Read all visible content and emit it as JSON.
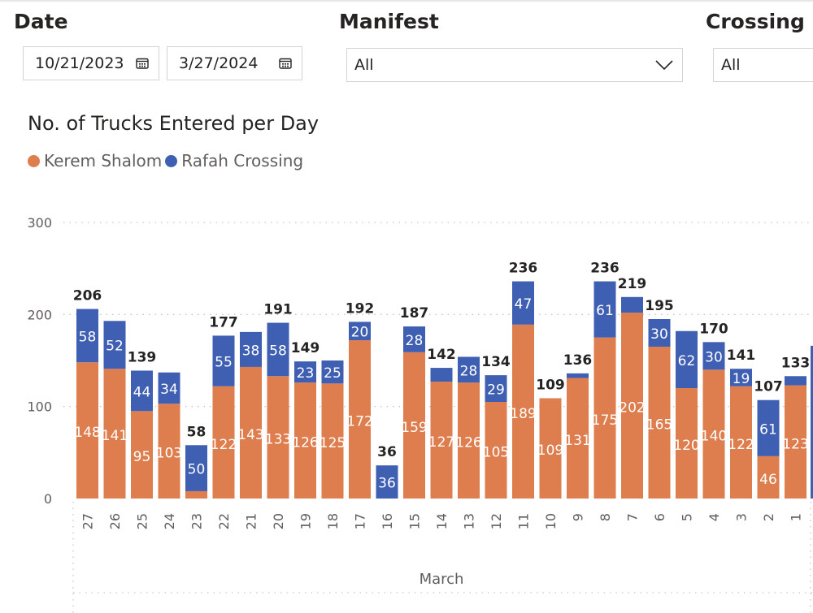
{
  "filters": {
    "date": {
      "label": "Date",
      "start": "10/21/2023",
      "end": "3/27/2024"
    },
    "manifest": {
      "label": "Manifest",
      "value": "All"
    },
    "crossing_point": {
      "label": "Crossing P",
      "value": "All"
    }
  },
  "colors": {
    "kerem_shalom": "#de7e4f",
    "rafah_crossing": "#3f5fb2"
  },
  "icons": {
    "date_picker": "calendar-icon",
    "dropdown": "chevron-down-icon"
  },
  "chart_data": {
    "type": "bar",
    "stacked": true,
    "title": "No. of Trucks Entered per Day",
    "legend": [
      "Kerem Shalom",
      "Rafah Crossing"
    ],
    "legend_position": "top-left",
    "categories": [
      "27",
      "26",
      "25",
      "24",
      "23",
      "22",
      "21",
      "20",
      "19",
      "18",
      "17",
      "16",
      "15",
      "14",
      "13",
      "12",
      "11",
      "10",
      "9",
      "8",
      "7",
      "6",
      "5",
      "4",
      "3",
      "2",
      "1"
    ],
    "x_group_label": "March",
    "ylim": [
      0,
      300
    ],
    "yticks": [
      0,
      100,
      200,
      300
    ],
    "grid": true,
    "series": [
      {
        "name": "Kerem Shalom",
        "color": "#de7e4f",
        "values": [
          148,
          141,
          95,
          103,
          8,
          122,
          143,
          133,
          126,
          125,
          172,
          0,
          159,
          127,
          126,
          105,
          189,
          109,
          131,
          175,
          202,
          165,
          120,
          140,
          122,
          46,
          123
        ]
      },
      {
        "name": "Rafah Crossing",
        "color": "#3f5fb2",
        "values": [
          58,
          52,
          44,
          34,
          50,
          55,
          38,
          58,
          23,
          25,
          20,
          36,
          28,
          15,
          28,
          29,
          47,
          0,
          5,
          61,
          17,
          30,
          62,
          30,
          19,
          61,
          10
        ]
      }
    ],
    "totals": [
      206,
      null,
      139,
      null,
      58,
      177,
      null,
      191,
      149,
      null,
      192,
      36,
      187,
      142,
      null,
      134,
      236,
      109,
      136,
      236,
      219,
      195,
      null,
      170,
      141,
      107,
      133
    ],
    "kerem_labels": [
      148,
      141,
      95,
      103,
      null,
      122,
      143,
      133,
      126,
      125,
      172,
      null,
      159,
      127,
      126,
      105,
      189,
      109,
      131,
      175,
      202,
      165,
      120,
      140,
      122,
      46,
      123
    ],
    "rafah_labels": [
      58,
      52,
      44,
      34,
      50,
      55,
      38,
      58,
      23,
      25,
      20,
      36,
      28,
      null,
      28,
      29,
      47,
      null,
      null,
      61,
      null,
      30,
      62,
      30,
      19,
      61,
      null
    ]
  }
}
